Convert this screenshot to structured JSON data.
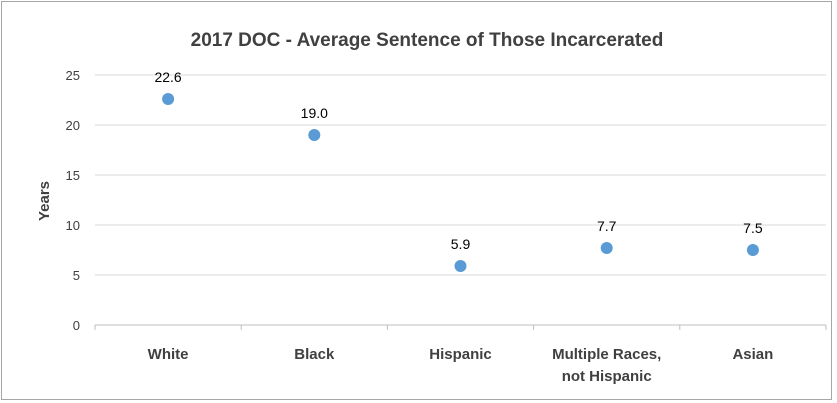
{
  "chart_data": {
    "type": "scatter",
    "title": "2017 DOC - Average Sentence of Those Incarcerated",
    "xlabel": "",
    "ylabel": "Years",
    "categories": [
      "White",
      "Black",
      "Hispanic",
      "Multiple Races,\nnot Hispanic",
      "Asian"
    ],
    "values": [
      22.6,
      19.0,
      5.9,
      7.7,
      7.5
    ],
    "data_labels": [
      "22.6",
      "19.0",
      "5.9",
      "7.7",
      "7.5"
    ],
    "ylim": [
      0,
      25
    ],
    "yticks": [
      0,
      5,
      10,
      15,
      20,
      25
    ],
    "grid": true,
    "legend": "none",
    "marker_color": "#5b9bd5"
  }
}
